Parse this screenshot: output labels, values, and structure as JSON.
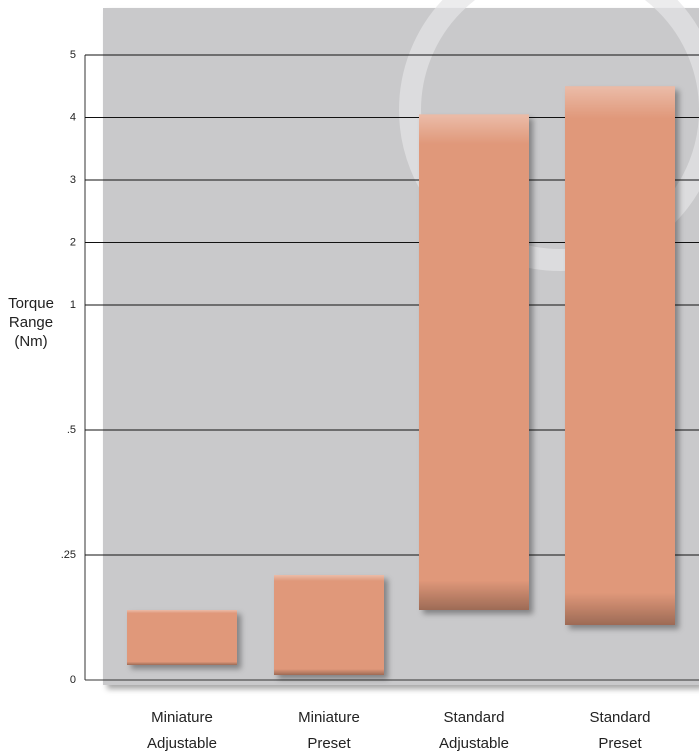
{
  "chart_data": {
    "type": "floating-bar",
    "y_label": [
      "Torque",
      "Range",
      "(Nm)"
    ],
    "categories": [
      [
        "Miniature",
        "Adjustable"
      ],
      [
        "Miniature",
        "Preset"
      ],
      [
        "Standard",
        "Adjustable"
      ],
      [
        "Standard",
        "Preset"
      ]
    ],
    "ranges": [
      [
        0.03,
        0.14
      ],
      [
        0.01,
        0.21
      ],
      [
        0.14,
        4.05
      ],
      [
        0.11,
        4.5
      ]
    ],
    "color": "#e0987a",
    "ylim": [
      0,
      5
    ],
    "yticks": [
      0,
      {
        "value": 0.25,
        "label": ".25"
      },
      {
        "value": 0.5,
        "label": ".5"
      },
      1,
      2,
      3,
      4,
      5
    ],
    "grid": true
  }
}
